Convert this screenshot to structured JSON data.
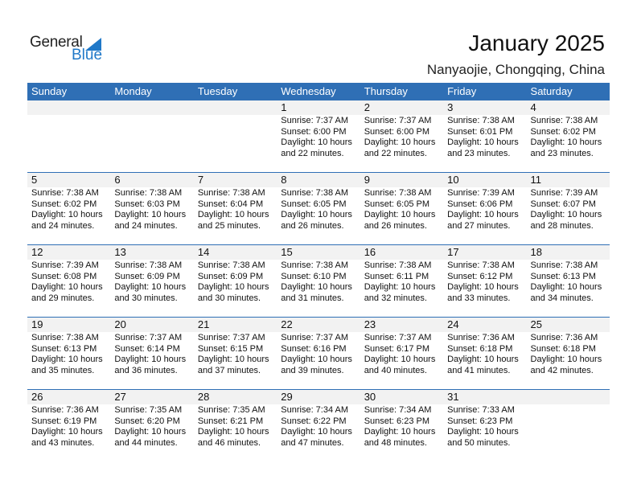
{
  "logo": {
    "general": "General",
    "blue": "Blue"
  },
  "title": "January 2025",
  "location": "Nanyaojie, Chongqing, China",
  "colors": {
    "header": "#2f6fb5",
    "band": "#f2f2f2",
    "logo_blue": "#1f78c8"
  },
  "weekdays": [
    "Sunday",
    "Monday",
    "Tuesday",
    "Wednesday",
    "Thursday",
    "Friday",
    "Saturday"
  ],
  "first_weekday_index": 3,
  "days": [
    {
      "d": "1",
      "rise": "Sunrise: 7:37 AM",
      "set": "Sunset: 6:00 PM",
      "dl1": "Daylight: 10 hours",
      "dl2": "and 22 minutes."
    },
    {
      "d": "2",
      "rise": "Sunrise: 7:37 AM",
      "set": "Sunset: 6:00 PM",
      "dl1": "Daylight: 10 hours",
      "dl2": "and 22 minutes."
    },
    {
      "d": "3",
      "rise": "Sunrise: 7:38 AM",
      "set": "Sunset: 6:01 PM",
      "dl1": "Daylight: 10 hours",
      "dl2": "and 23 minutes."
    },
    {
      "d": "4",
      "rise": "Sunrise: 7:38 AM",
      "set": "Sunset: 6:02 PM",
      "dl1": "Daylight: 10 hours",
      "dl2": "and 23 minutes."
    },
    {
      "d": "5",
      "rise": "Sunrise: 7:38 AM",
      "set": "Sunset: 6:02 PM",
      "dl1": "Daylight: 10 hours",
      "dl2": "and 24 minutes."
    },
    {
      "d": "6",
      "rise": "Sunrise: 7:38 AM",
      "set": "Sunset: 6:03 PM",
      "dl1": "Daylight: 10 hours",
      "dl2": "and 24 minutes."
    },
    {
      "d": "7",
      "rise": "Sunrise: 7:38 AM",
      "set": "Sunset: 6:04 PM",
      "dl1": "Daylight: 10 hours",
      "dl2": "and 25 minutes."
    },
    {
      "d": "8",
      "rise": "Sunrise: 7:38 AM",
      "set": "Sunset: 6:05 PM",
      "dl1": "Daylight: 10 hours",
      "dl2": "and 26 minutes."
    },
    {
      "d": "9",
      "rise": "Sunrise: 7:38 AM",
      "set": "Sunset: 6:05 PM",
      "dl1": "Daylight: 10 hours",
      "dl2": "and 26 minutes."
    },
    {
      "d": "10",
      "rise": "Sunrise: 7:39 AM",
      "set": "Sunset: 6:06 PM",
      "dl1": "Daylight: 10 hours",
      "dl2": "and 27 minutes."
    },
    {
      "d": "11",
      "rise": "Sunrise: 7:39 AM",
      "set": "Sunset: 6:07 PM",
      "dl1": "Daylight: 10 hours",
      "dl2": "and 28 minutes."
    },
    {
      "d": "12",
      "rise": "Sunrise: 7:39 AM",
      "set": "Sunset: 6:08 PM",
      "dl1": "Daylight: 10 hours",
      "dl2": "and 29 minutes."
    },
    {
      "d": "13",
      "rise": "Sunrise: 7:38 AM",
      "set": "Sunset: 6:09 PM",
      "dl1": "Daylight: 10 hours",
      "dl2": "and 30 minutes."
    },
    {
      "d": "14",
      "rise": "Sunrise: 7:38 AM",
      "set": "Sunset: 6:09 PM",
      "dl1": "Daylight: 10 hours",
      "dl2": "and 30 minutes."
    },
    {
      "d": "15",
      "rise": "Sunrise: 7:38 AM",
      "set": "Sunset: 6:10 PM",
      "dl1": "Daylight: 10 hours",
      "dl2": "and 31 minutes."
    },
    {
      "d": "16",
      "rise": "Sunrise: 7:38 AM",
      "set": "Sunset: 6:11 PM",
      "dl1": "Daylight: 10 hours",
      "dl2": "and 32 minutes."
    },
    {
      "d": "17",
      "rise": "Sunrise: 7:38 AM",
      "set": "Sunset: 6:12 PM",
      "dl1": "Daylight: 10 hours",
      "dl2": "and 33 minutes."
    },
    {
      "d": "18",
      "rise": "Sunrise: 7:38 AM",
      "set": "Sunset: 6:13 PM",
      "dl1": "Daylight: 10 hours",
      "dl2": "and 34 minutes."
    },
    {
      "d": "19",
      "rise": "Sunrise: 7:38 AM",
      "set": "Sunset: 6:13 PM",
      "dl1": "Daylight: 10 hours",
      "dl2": "and 35 minutes."
    },
    {
      "d": "20",
      "rise": "Sunrise: 7:37 AM",
      "set": "Sunset: 6:14 PM",
      "dl1": "Daylight: 10 hours",
      "dl2": "and 36 minutes."
    },
    {
      "d": "21",
      "rise": "Sunrise: 7:37 AM",
      "set": "Sunset: 6:15 PM",
      "dl1": "Daylight: 10 hours",
      "dl2": "and 37 minutes."
    },
    {
      "d": "22",
      "rise": "Sunrise: 7:37 AM",
      "set": "Sunset: 6:16 PM",
      "dl1": "Daylight: 10 hours",
      "dl2": "and 39 minutes."
    },
    {
      "d": "23",
      "rise": "Sunrise: 7:37 AM",
      "set": "Sunset: 6:17 PM",
      "dl1": "Daylight: 10 hours",
      "dl2": "and 40 minutes."
    },
    {
      "d": "24",
      "rise": "Sunrise: 7:36 AM",
      "set": "Sunset: 6:18 PM",
      "dl1": "Daylight: 10 hours",
      "dl2": "and 41 minutes."
    },
    {
      "d": "25",
      "rise": "Sunrise: 7:36 AM",
      "set": "Sunset: 6:18 PM",
      "dl1": "Daylight: 10 hours",
      "dl2": "and 42 minutes."
    },
    {
      "d": "26",
      "rise": "Sunrise: 7:36 AM",
      "set": "Sunset: 6:19 PM",
      "dl1": "Daylight: 10 hours",
      "dl2": "and 43 minutes."
    },
    {
      "d": "27",
      "rise": "Sunrise: 7:35 AM",
      "set": "Sunset: 6:20 PM",
      "dl1": "Daylight: 10 hours",
      "dl2": "and 44 minutes."
    },
    {
      "d": "28",
      "rise": "Sunrise: 7:35 AM",
      "set": "Sunset: 6:21 PM",
      "dl1": "Daylight: 10 hours",
      "dl2": "and 46 minutes."
    },
    {
      "d": "29",
      "rise": "Sunrise: 7:34 AM",
      "set": "Sunset: 6:22 PM",
      "dl1": "Daylight: 10 hours",
      "dl2": "and 47 minutes."
    },
    {
      "d": "30",
      "rise": "Sunrise: 7:34 AM",
      "set": "Sunset: 6:23 PM",
      "dl1": "Daylight: 10 hours",
      "dl2": "and 48 minutes."
    },
    {
      "d": "31",
      "rise": "Sunrise: 7:33 AM",
      "set": "Sunset: 6:23 PM",
      "dl1": "Daylight: 10 hours",
      "dl2": "and 50 minutes."
    }
  ]
}
